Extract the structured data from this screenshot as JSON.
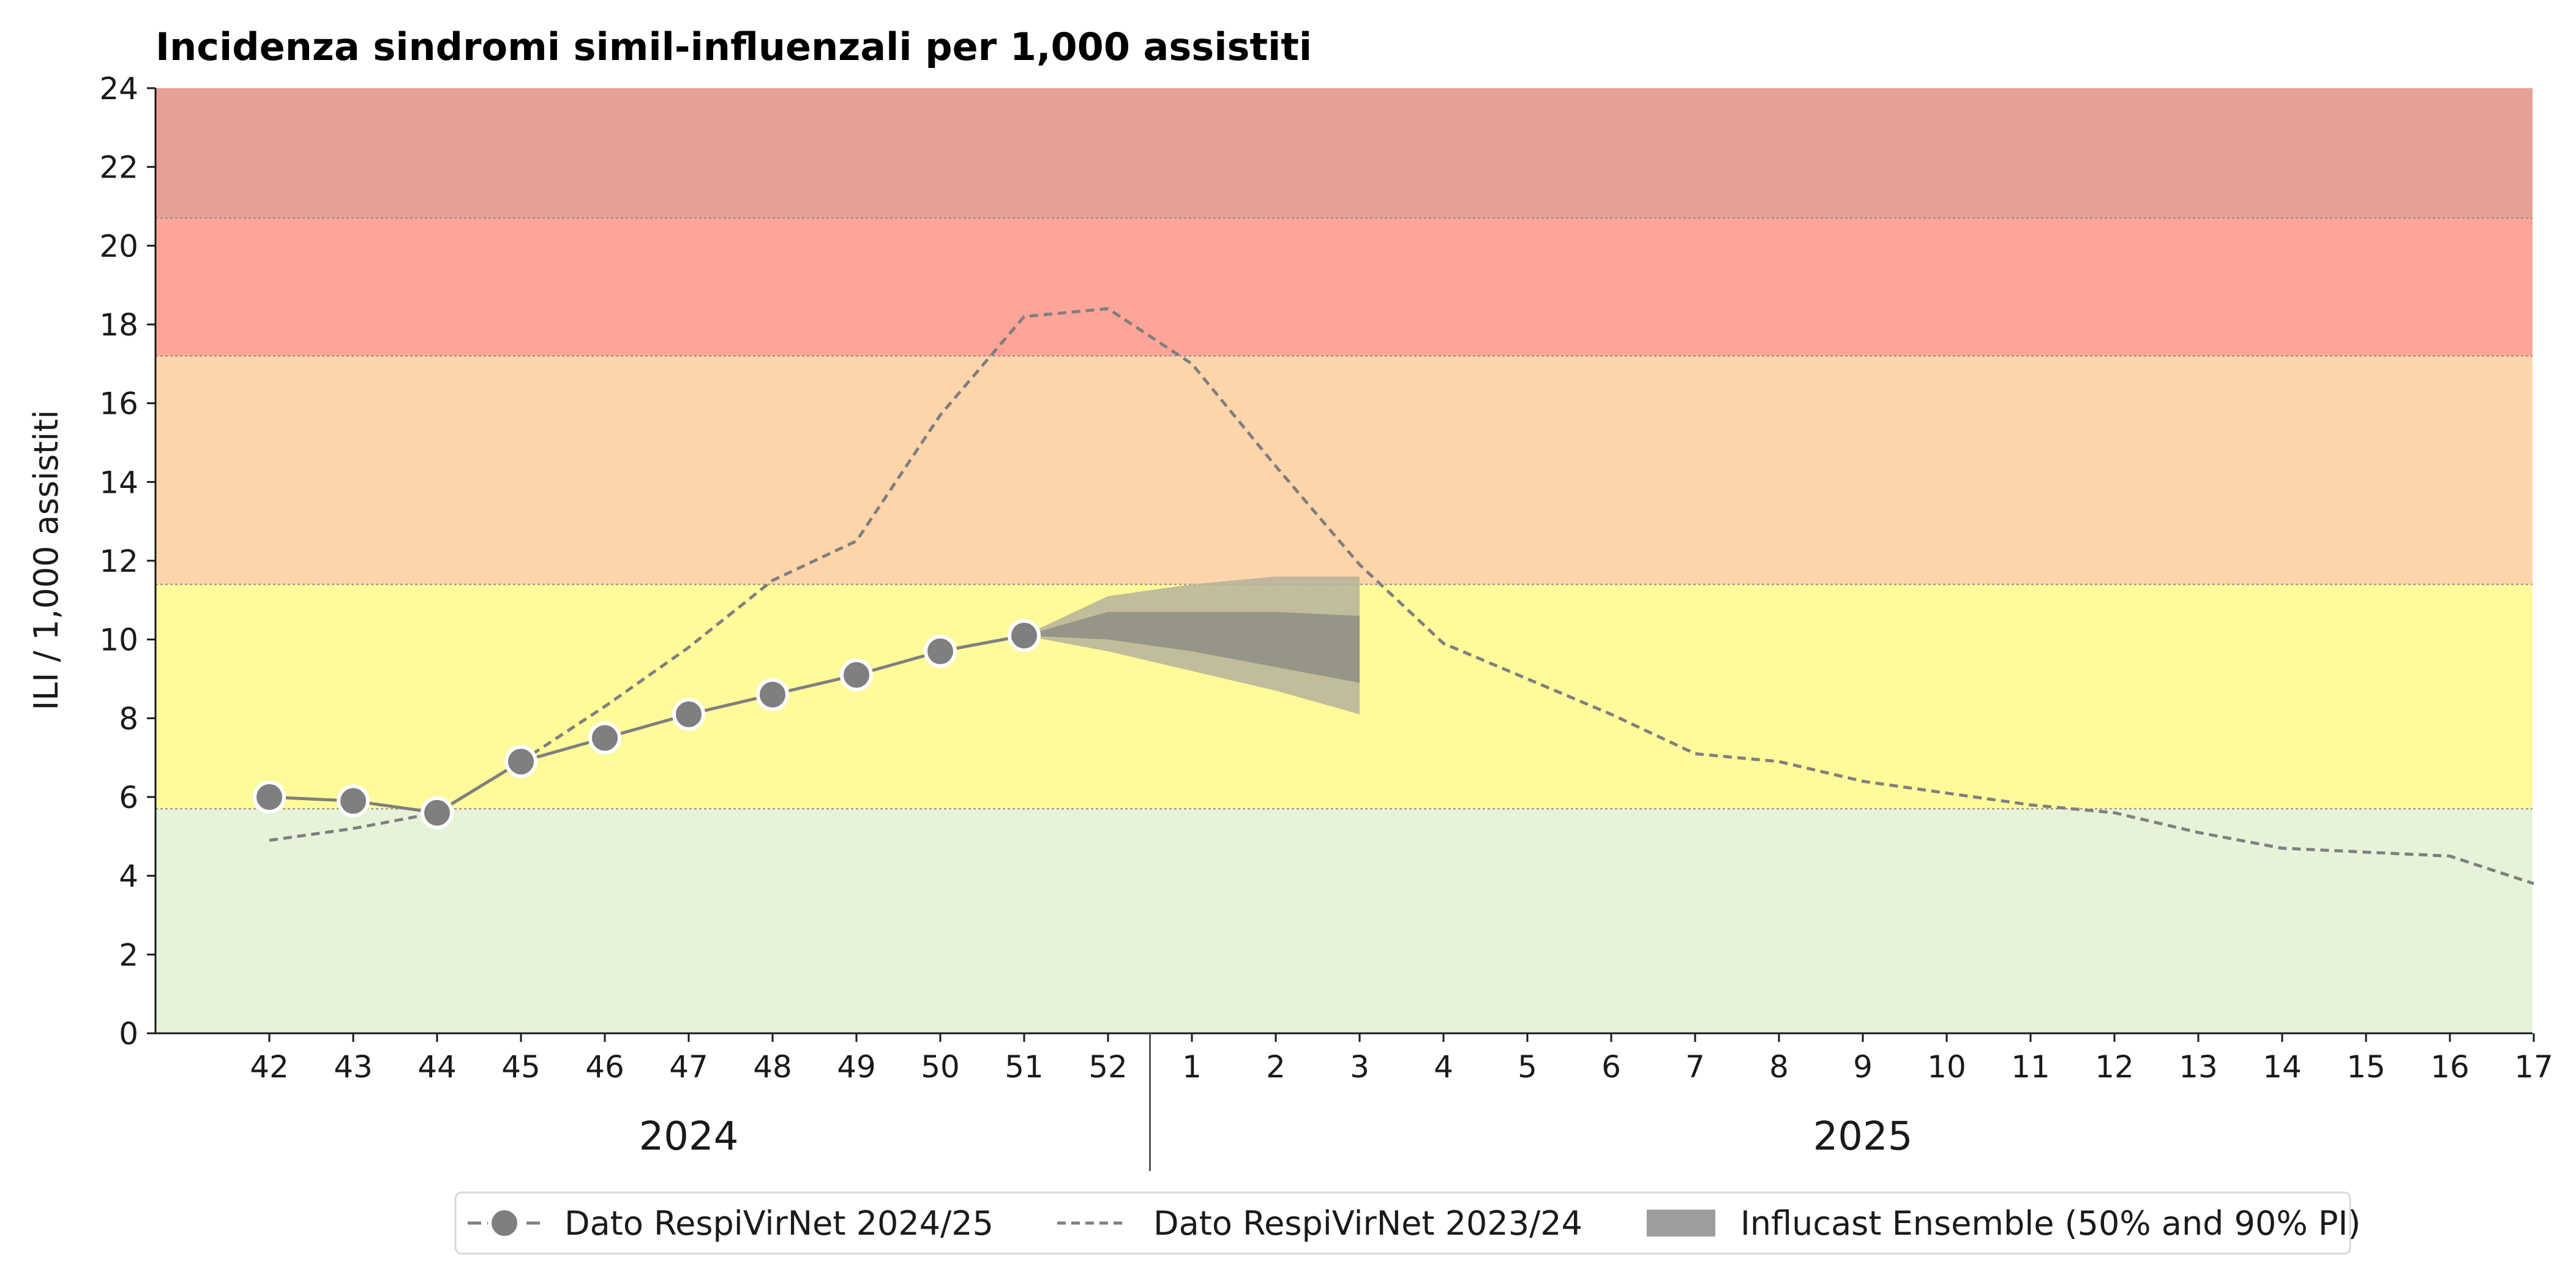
{
  "chart_data": {
    "type": "line",
    "title": "Incidenza sindromi simil-influenzali per 1,000 assistiti",
    "xlabel": "",
    "ylabel": "ILI / 1,000 assistiti",
    "ylim": [
      0,
      24
    ],
    "yticks": [
      0,
      2,
      4,
      6,
      8,
      10,
      12,
      14,
      16,
      18,
      20,
      22,
      24
    ],
    "week_labels": [
      "42",
      "43",
      "44",
      "45",
      "46",
      "47",
      "48",
      "49",
      "50",
      "51",
      "52",
      "1",
      "2",
      "3",
      "4",
      "5",
      "6",
      "7",
      "8",
      "9",
      "10",
      "11",
      "12",
      "13",
      "14",
      "15",
      "16",
      "17"
    ],
    "year_labels": [
      {
        "label": "2024",
        "from_index": 0,
        "to_index": 10
      },
      {
        "label": "2025",
        "from_index": 11,
        "to_index": 27
      }
    ],
    "season_boundary_after_index": 10,
    "intensity_bands": [
      {
        "from": 0,
        "to": 5.7,
        "color": "#e7f3d9"
      },
      {
        "from": 5.7,
        "to": 11.4,
        "color": "#fffa9a"
      },
      {
        "from": 11.4,
        "to": 17.2,
        "color": "#fed5ab"
      },
      {
        "from": 17.2,
        "to": 20.7,
        "color": "#ffa597"
      },
      {
        "from": 20.7,
        "to": 24,
        "color": "#e6a096"
      }
    ],
    "series": [
      {
        "name": "Dato RespiVirNet 2024/25",
        "style": "solid-markers",
        "color": "#7f7f7f",
        "values": [
          6.0,
          5.9,
          5.6,
          6.9,
          7.5,
          8.1,
          8.6,
          9.1,
          9.7,
          10.1
        ]
      },
      {
        "name": "Dato RespiVirNet 2023/24",
        "style": "dashed",
        "color": "#7f7f7f",
        "values": [
          4.9,
          5.2,
          5.6,
          6.9,
          8.3,
          9.8,
          11.5,
          12.5,
          15.7,
          18.2,
          18.4,
          17.0,
          14.4,
          11.9,
          9.9,
          9.0,
          8.1,
          7.1,
          6.9,
          6.4,
          6.1,
          5.8,
          5.6,
          5.1,
          4.7,
          4.6,
          4.5,
          3.8
        ]
      }
    ],
    "forecast": {
      "name": "Influcast Ensemble (50% and 90% PI)",
      "x_index": [
        9,
        10,
        11,
        12,
        13
      ],
      "pi90_low": [
        10.1,
        9.7,
        9.2,
        8.7,
        8.1
      ],
      "pi90_high": [
        10.1,
        11.1,
        11.4,
        11.6,
        11.6
      ],
      "pi50_low": [
        10.1,
        10.0,
        9.7,
        9.3,
        8.9
      ],
      "pi50_high": [
        10.1,
        10.7,
        10.7,
        10.7,
        10.6
      ],
      "pi90_color": "#b6b29a",
      "pi50_color": "#949286"
    },
    "grid": false,
    "legend_position": "bottom-center"
  }
}
